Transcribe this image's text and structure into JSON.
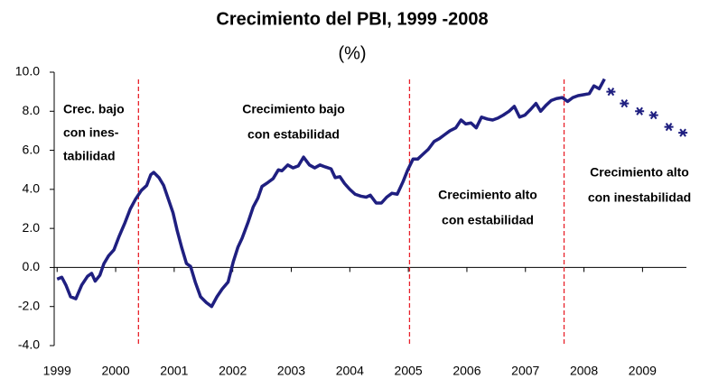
{
  "chart_data": {
    "type": "line",
    "title": "Crecimiento del PBI, 1999 -2008",
    "subtitle": "(%)",
    "xlim": [
      1998.95,
      2009.75
    ],
    "xticks": [
      1999,
      2000,
      2001,
      2002,
      2003,
      2004,
      2005,
      2006,
      2007,
      2008,
      2009
    ],
    "ylim": [
      -4,
      10
    ],
    "yticks": [
      {
        "value": -4,
        "label": "-4.0"
      },
      {
        "value": -2,
        "label": "-2.0"
      },
      {
        "value": 0,
        "label": "0.0"
      },
      {
        "value": 2,
        "label": "2.0"
      },
      {
        "value": 4,
        "label": "4.0"
      },
      {
        "value": 6,
        "label": "6.0"
      },
      {
        "value": 8,
        "label": "8.0"
      },
      {
        "value": 10,
        "label": "10.0"
      }
    ],
    "grid": false,
    "dividers": [
      2000.39,
      2005.02,
      2007.66
    ],
    "divider_color": "#e8202a",
    "series": [
      {
        "color": "#1f1f80",
        "marker": "none",
        "x": [
          1999.0,
          1999.08,
          1999.15,
          1999.23,
          1999.32,
          1999.42,
          1999.52,
          1999.59,
          1999.65,
          1999.73,
          1999.8,
          1999.88,
          1999.97,
          2000.06,
          2000.16,
          2000.25,
          2000.34,
          2000.44,
          2000.53,
          2000.6,
          2000.65,
          2000.74,
          2000.82,
          2000.9,
          2000.98,
          2001.05,
          2001.13,
          2001.21,
          2001.28,
          2001.36,
          2001.45,
          2001.55,
          2001.64,
          2001.73,
          2001.82,
          2001.92,
          2002.01,
          2002.09,
          2002.16,
          2002.26,
          2002.35,
          2002.43,
          2002.5,
          2002.6,
          2002.69,
          2002.78,
          2002.84,
          2002.94,
          2003.03,
          2003.12,
          2003.21,
          2003.31,
          2003.4,
          2003.49,
          2003.58,
          2003.68,
          2003.75,
          2003.83,
          2003.91,
          2004.0,
          2004.09,
          2004.19,
          2004.28,
          2004.35,
          2004.45,
          2004.54,
          2004.63,
          2004.72,
          2004.81,
          2004.91,
          2004.99,
          2005.08,
          2005.16,
          2005.25,
          2005.34,
          2005.44,
          2005.53,
          2005.62,
          2005.71,
          2005.81,
          2005.9,
          2005.98,
          2006.07,
          2006.16,
          2006.25,
          2006.35,
          2006.44,
          2006.53,
          2006.62,
          2006.72,
          2006.81,
          2006.9,
          2006.99,
          2007.09,
          2007.18,
          2007.26,
          2007.35,
          2007.44,
          2007.53,
          2007.63,
          2007.72,
          2007.81,
          2007.9,
          2008.0,
          2008.09,
          2008.17,
          2008.26,
          2008.35
        ],
        "values": [
          -0.6,
          -0.5,
          -0.9,
          -1.5,
          -1.6,
          -0.9,
          -0.45,
          -0.3,
          -0.7,
          -0.4,
          0.2,
          0.6,
          0.9,
          1.6,
          2.3,
          3.0,
          3.5,
          3.95,
          4.2,
          4.75,
          4.87,
          4.6,
          4.2,
          3.5,
          2.8,
          1.9,
          1.0,
          0.2,
          0.05,
          -0.75,
          -1.5,
          -1.8,
          -2.0,
          -1.5,
          -1.1,
          -0.75,
          0.3,
          1.05,
          1.5,
          2.3,
          3.1,
          3.55,
          4.15,
          4.35,
          4.55,
          5.0,
          4.95,
          5.25,
          5.1,
          5.2,
          5.65,
          5.25,
          5.1,
          5.25,
          5.15,
          5.05,
          4.6,
          4.65,
          4.3,
          4.0,
          3.75,
          3.65,
          3.6,
          3.7,
          3.3,
          3.3,
          3.6,
          3.8,
          3.75,
          4.4,
          5.0,
          5.55,
          5.55,
          5.8,
          6.05,
          6.45,
          6.6,
          6.8,
          7.0,
          7.15,
          7.55,
          7.35,
          7.4,
          7.15,
          7.7,
          7.6,
          7.55,
          7.65,
          7.8,
          8.0,
          8.25,
          7.7,
          7.8,
          8.1,
          8.4,
          8.0,
          8.3,
          8.55,
          8.65,
          8.7,
          8.5,
          8.7,
          8.8,
          8.85,
          8.9,
          9.3,
          9.15,
          9.65
        ]
      },
      {
        "color": "#1f1f80",
        "marker": "star",
        "x": [
          2008.46,
          2008.69,
          2008.95,
          2009.19,
          2009.45,
          2009.69
        ],
        "values": [
          9.0,
          8.4,
          8.0,
          7.8,
          7.2,
          6.9
        ]
      }
    ],
    "annotations": [
      {
        "lines": [
          "Crec. bajo",
          "con ines-",
          "tabilidad"
        ]
      },
      {
        "lines": [
          "Crecimiento bajo",
          "con estabilidad"
        ]
      },
      {
        "lines": [
          "Crecimiento alto",
          "con estabilidad"
        ]
      },
      {
        "lines": [
          "Crecimiento alto",
          "con inestabilidad"
        ]
      }
    ]
  }
}
